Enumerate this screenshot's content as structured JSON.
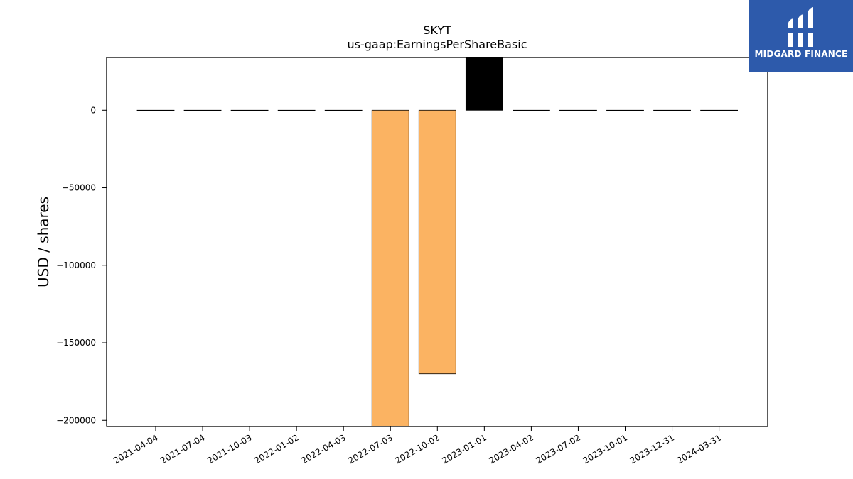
{
  "brand": {
    "name": "MIDGARD FINANCE",
    "icon": "midgard-logo-icon",
    "background": "#2d5aab"
  },
  "chart_data": {
    "type": "bar",
    "title": "SKYT",
    "subtitle": "us-gaap:EarningsPerShareBasic",
    "xlabel": "",
    "ylabel": "USD / shares",
    "categories": [
      "2021-04-04",
      "2021-07-04",
      "2021-10-03",
      "2022-01-02",
      "2022-04-03",
      "2022-07-03",
      "2022-10-02",
      "2023-01-01",
      "2023-04-02",
      "2023-07-02",
      "2023-10-01",
      "2023-12-31",
      "2024-03-31"
    ],
    "values": [
      0,
      0,
      0,
      0,
      0,
      -208000,
      -170000,
      36000,
      0,
      0,
      0,
      0,
      0
    ],
    "bar_colors": [
      "#000000",
      "#000000",
      "#000000",
      "#000000",
      "#000000",
      "#fbb362",
      "#fbb362",
      "#000000",
      "#000000",
      "#000000",
      "#000000",
      "#000000",
      "#000000"
    ],
    "ylim": [
      -204000,
      34000
    ],
    "yticks": [
      0,
      -50000,
      -100000,
      -150000,
      -200000
    ],
    "ytick_labels": [
      "0",
      "−50000",
      "−100000",
      "−150000",
      "−200000"
    ],
    "grid": false,
    "legend": "none"
  }
}
